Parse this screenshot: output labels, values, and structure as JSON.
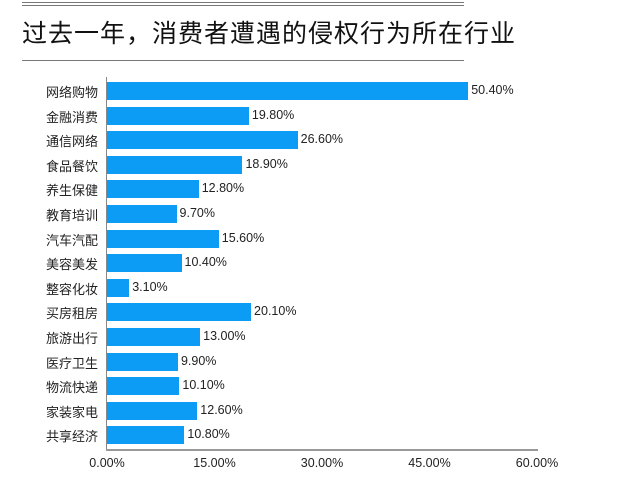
{
  "chart_data": {
    "type": "bar",
    "orientation": "horizontal",
    "title": "过去一年，消费者遭遇的侵权行为所在行业",
    "categories": [
      "网络购物",
      "金融消费",
      "通信网络",
      "食品餐饮",
      "养生保健",
      "教育培训",
      "汽车汽配",
      "美容美发",
      "整容化妆",
      "买房租房",
      "旅游出行",
      "医疗卫生",
      "物流快递",
      "家装家电",
      "共享经济"
    ],
    "values": [
      50.4,
      19.8,
      26.6,
      18.9,
      12.8,
      9.7,
      15.6,
      10.4,
      3.1,
      20.1,
      13.0,
      9.9,
      10.1,
      12.6,
      10.8
    ],
    "value_labels": [
      "50.40%",
      "19.80%",
      "26.60%",
      "18.90%",
      "12.80%",
      "9.70%",
      "15.60%",
      "10.40%",
      "3.10%",
      "20.10%",
      "13.00%",
      "9.90%",
      "10.10%",
      "12.60%",
      "10.80%"
    ],
    "xlabel": "",
    "ylabel": "",
    "xlim": [
      0,
      60
    ],
    "x_ticks": [
      "0.00%",
      "15.00%",
      "30.00%",
      "45.00%",
      "60.00%"
    ],
    "grid": false,
    "legend": null,
    "bar_color": "#0c9bf5"
  }
}
